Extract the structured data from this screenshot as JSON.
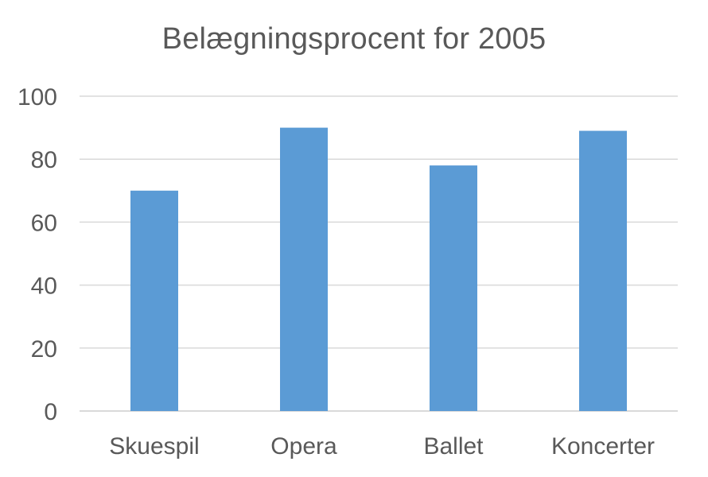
{
  "chart_data": {
    "type": "bar",
    "title": "Belægningsprocent for 2005",
    "xlabel": "",
    "ylabel": "",
    "categories": [
      "Skuespil",
      "Opera",
      "Ballet",
      "Koncerter"
    ],
    "values": [
      70,
      90,
      78,
      89
    ],
    "ylim": [
      0,
      100
    ],
    "yticks": [
      "0",
      "20",
      "40",
      "60",
      "80",
      "100"
    ],
    "grid": true,
    "legend": "none",
    "bar_color": "#5b9bd5"
  }
}
